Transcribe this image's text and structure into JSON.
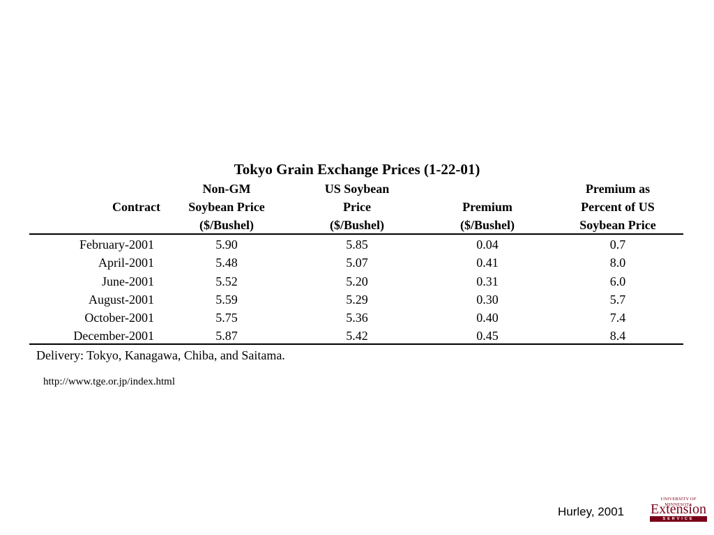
{
  "table": {
    "title": "Tokyo Grain Exchange Prices (1-22-01)",
    "headers": [
      [
        "Contract"
      ],
      [
        "Non-GM",
        "Soybean Price",
        "($/Bushel)"
      ],
      [
        "US Soybean",
        "Price",
        "($/Bushel)"
      ],
      [
        "Premium",
        "($/Bushel)"
      ],
      [
        "Premium as",
        "Percent of US",
        "Soybean Price"
      ]
    ],
    "rows": [
      [
        "February-2001",
        "5.90",
        "5.85",
        "0.04",
        "0.7"
      ],
      [
        "April-2001",
        "5.48",
        "5.07",
        "0.41",
        "8.0"
      ],
      [
        "June-2001",
        "5.52",
        "5.20",
        "0.31",
        "6.0"
      ],
      [
        "August-2001",
        "5.59",
        "5.29",
        "0.30",
        "5.7"
      ],
      [
        "October-2001",
        "5.75",
        "5.36",
        "0.40",
        "7.4"
      ],
      [
        "December-2001",
        "5.87",
        "5.42",
        "0.45",
        "8.4"
      ]
    ],
    "note": "Delivery: Tokyo, Kanagawa, Chiba, and Saitama.",
    "source_url": "http://www.tge.or.jp/index.html"
  },
  "footer": {
    "credit": "Hurley, 2001",
    "logo_top": "UNIVERSITY OF MINNESOTA",
    "logo_main": "Extension",
    "logo_bar": "SERVICE"
  },
  "colors": {
    "logo_maroon": "#7a0019"
  }
}
